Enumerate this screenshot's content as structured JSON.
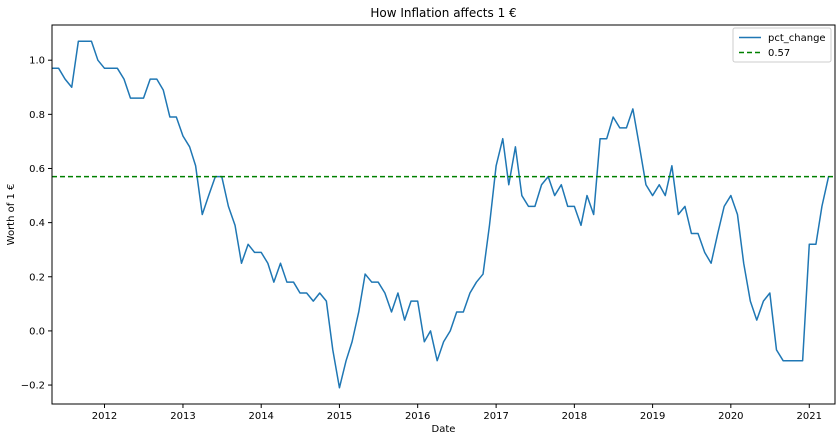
{
  "chart_data": {
    "type": "line",
    "title": "How Inflation affects 1 €",
    "xlabel": "Date",
    "ylabel": "Worth of 1 €",
    "xlim": [
      "2011-05-01",
      "2021-05-01"
    ],
    "ylim": [
      -0.27,
      1.13
    ],
    "grid": false,
    "legend_position": "top-right",
    "x_ticks": [
      "2012",
      "2013",
      "2014",
      "2015",
      "2016",
      "2017",
      "2018",
      "2019",
      "2020",
      "2021"
    ],
    "y_ticks": [
      "−0.2",
      "0.0",
      "0.2",
      "0.4",
      "0.6",
      "0.8",
      "1.0"
    ],
    "series": [
      {
        "name": "pct_change",
        "color": "#1f77b4",
        "style": "solid",
        "points": [
          [
            "2011-05-01",
            0.97
          ],
          [
            "2011-06-01",
            0.97
          ],
          [
            "2011-07-01",
            0.93
          ],
          [
            "2011-08-01",
            0.9
          ],
          [
            "2011-09-01",
            1.07
          ],
          [
            "2011-10-01",
            1.07
          ],
          [
            "2011-11-01",
            1.07
          ],
          [
            "2011-12-01",
            1.0
          ],
          [
            "2012-01-01",
            0.97
          ],
          [
            "2012-02-01",
            0.97
          ],
          [
            "2012-03-01",
            0.97
          ],
          [
            "2012-04-01",
            0.93
          ],
          [
            "2012-05-01",
            0.86
          ],
          [
            "2012-06-01",
            0.86
          ],
          [
            "2012-07-01",
            0.86
          ],
          [
            "2012-08-01",
            0.93
          ],
          [
            "2012-09-01",
            0.93
          ],
          [
            "2012-10-01",
            0.89
          ],
          [
            "2012-11-01",
            0.79
          ],
          [
            "2012-12-01",
            0.79
          ],
          [
            "2013-01-01",
            0.72
          ],
          [
            "2013-02-01",
            0.68
          ],
          [
            "2013-03-01",
            0.61
          ],
          [
            "2013-04-01",
            0.43
          ],
          [
            "2013-05-01",
            0.5
          ],
          [
            "2013-06-01",
            0.57
          ],
          [
            "2013-07-01",
            0.57
          ],
          [
            "2013-08-01",
            0.46
          ],
          [
            "2013-09-01",
            0.39
          ],
          [
            "2013-10-01",
            0.25
          ],
          [
            "2013-11-01",
            0.32
          ],
          [
            "2013-12-01",
            0.29
          ],
          [
            "2014-01-01",
            0.29
          ],
          [
            "2014-02-01",
            0.25
          ],
          [
            "2014-03-01",
            0.18
          ],
          [
            "2014-04-01",
            0.25
          ],
          [
            "2014-05-01",
            0.18
          ],
          [
            "2014-06-01",
            0.18
          ],
          [
            "2014-07-01",
            0.14
          ],
          [
            "2014-08-01",
            0.14
          ],
          [
            "2014-09-01",
            0.11
          ],
          [
            "2014-10-01",
            0.14
          ],
          [
            "2014-11-01",
            0.11
          ],
          [
            "2014-12-01",
            -0.07
          ],
          [
            "2015-01-01",
            -0.21
          ],
          [
            "2015-02-01",
            -0.11
          ],
          [
            "2015-03-01",
            -0.04
          ],
          [
            "2015-04-01",
            0.07
          ],
          [
            "2015-05-01",
            0.21
          ],
          [
            "2015-06-01",
            0.18
          ],
          [
            "2015-07-01",
            0.18
          ],
          [
            "2015-08-01",
            0.14
          ],
          [
            "2015-09-01",
            0.07
          ],
          [
            "2015-10-01",
            0.14
          ],
          [
            "2015-11-01",
            0.04
          ],
          [
            "2015-12-01",
            0.11
          ],
          [
            "2016-01-01",
            0.11
          ],
          [
            "2016-02-01",
            -0.04
          ],
          [
            "2016-03-01",
            0.0
          ],
          [
            "2016-04-01",
            -0.11
          ],
          [
            "2016-05-01",
            -0.04
          ],
          [
            "2016-06-01",
            0.0
          ],
          [
            "2016-07-01",
            0.07
          ],
          [
            "2016-08-01",
            0.07
          ],
          [
            "2016-09-01",
            0.14
          ],
          [
            "2016-10-01",
            0.18
          ],
          [
            "2016-11-01",
            0.21
          ],
          [
            "2016-12-01",
            0.39
          ],
          [
            "2017-01-01",
            0.61
          ],
          [
            "2017-02-01",
            0.71
          ],
          [
            "2017-03-01",
            0.54
          ],
          [
            "2017-04-01",
            0.68
          ],
          [
            "2017-05-01",
            0.5
          ],
          [
            "2017-06-01",
            0.46
          ],
          [
            "2017-07-01",
            0.46
          ],
          [
            "2017-08-01",
            0.54
          ],
          [
            "2017-09-01",
            0.57
          ],
          [
            "2017-10-01",
            0.5
          ],
          [
            "2017-11-01",
            0.54
          ],
          [
            "2017-12-01",
            0.46
          ],
          [
            "2018-01-01",
            0.46
          ],
          [
            "2018-02-01",
            0.39
          ],
          [
            "2018-03-01",
            0.5
          ],
          [
            "2018-04-01",
            0.43
          ],
          [
            "2018-05-01",
            0.71
          ],
          [
            "2018-06-01",
            0.71
          ],
          [
            "2018-07-01",
            0.79
          ],
          [
            "2018-08-01",
            0.75
          ],
          [
            "2018-09-01",
            0.75
          ],
          [
            "2018-10-01",
            0.82
          ],
          [
            "2018-11-01",
            0.68
          ],
          [
            "2018-12-01",
            0.54
          ],
          [
            "2019-01-01",
            0.5
          ],
          [
            "2019-02-01",
            0.54
          ],
          [
            "2019-03-01",
            0.5
          ],
          [
            "2019-04-01",
            0.61
          ],
          [
            "2019-05-01",
            0.43
          ],
          [
            "2019-06-01",
            0.46
          ],
          [
            "2019-07-01",
            0.36
          ],
          [
            "2019-08-01",
            0.36
          ],
          [
            "2019-09-01",
            0.29
          ],
          [
            "2019-10-01",
            0.25
          ],
          [
            "2019-11-01",
            0.36
          ],
          [
            "2019-12-01",
            0.46
          ],
          [
            "2020-01-01",
            0.5
          ],
          [
            "2020-02-01",
            0.43
          ],
          [
            "2020-03-01",
            0.25
          ],
          [
            "2020-04-01",
            0.11
          ],
          [
            "2020-05-01",
            0.04
          ],
          [
            "2020-06-01",
            0.11
          ],
          [
            "2020-07-01",
            0.14
          ],
          [
            "2020-08-01",
            -0.07
          ],
          [
            "2020-09-01",
            -0.11
          ],
          [
            "2020-10-01",
            -0.11
          ],
          [
            "2020-11-01",
            -0.11
          ],
          [
            "2020-12-01",
            -0.11
          ],
          [
            "2021-01-01",
            0.32
          ],
          [
            "2021-02-01",
            0.32
          ],
          [
            "2021-03-01",
            0.46
          ],
          [
            "2021-04-01",
            0.57
          ]
        ]
      },
      {
        "name": "0.57",
        "color": "#008000",
        "style": "dashed",
        "constant": 0.57
      }
    ]
  }
}
